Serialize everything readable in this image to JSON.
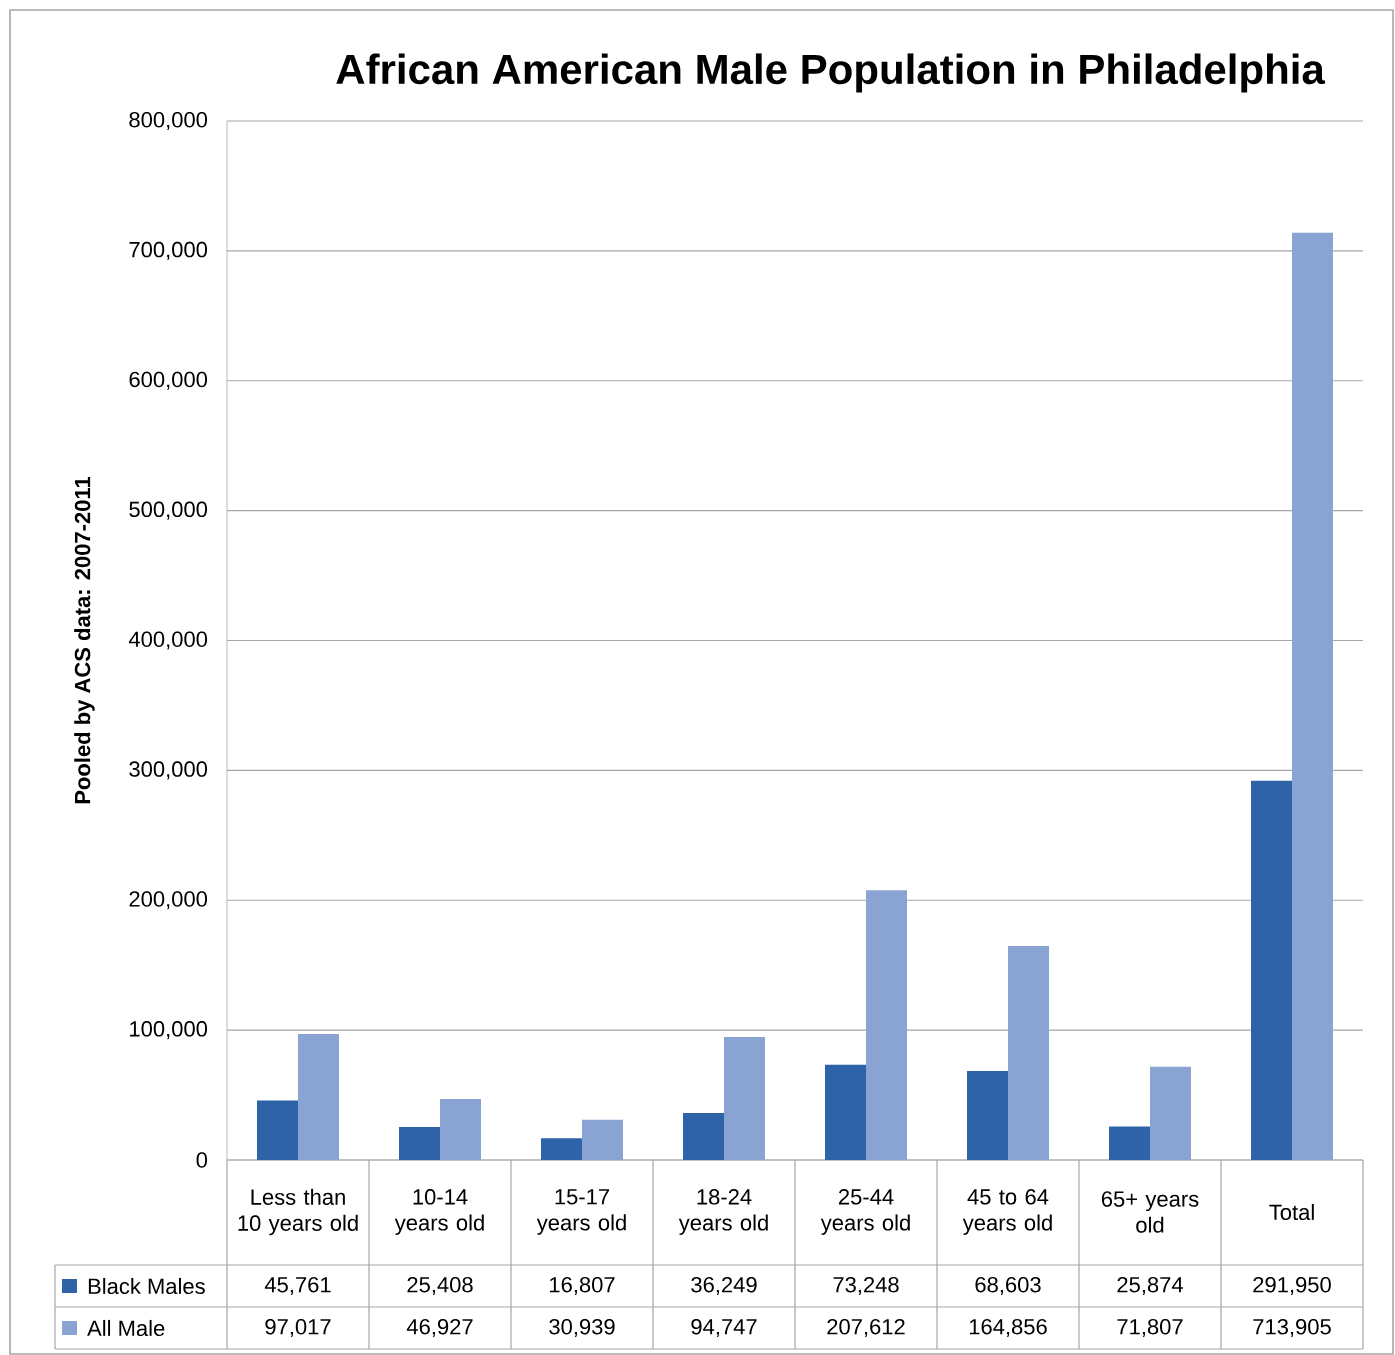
{
  "chart_data": {
    "type": "bar",
    "title": "African American Male Population in Philadelphia",
    "ylabel": "Pooled by ACS data: 2007-2011",
    "categories": [
      "Less than 10 years old",
      "10-14 years old",
      "15-17 years old",
      "18-24 years old",
      "25-44 years old",
      "45 to 64 years old",
      "65+ years old",
      "Total"
    ],
    "series": [
      {
        "name": "Black Males",
        "color": "#2f63a8",
        "values": [
          45761,
          25408,
          16807,
          36249,
          73248,
          68603,
          25874,
          291950
        ],
        "value_labels": [
          "45,761",
          "25,408",
          "16,807",
          "36,249",
          "73,248",
          "68,603",
          "25,874",
          "291,950"
        ]
      },
      {
        "name": "All Male",
        "color": "#89a4d2",
        "values": [
          97017,
          46927,
          30939,
          94747,
          207612,
          164856,
          71807,
          713905
        ],
        "value_labels": [
          "97,017",
          "46,927",
          "30,939",
          "94,747",
          "207,612",
          "164,856",
          "71,807",
          "713,905"
        ]
      }
    ],
    "ylim": [
      0,
      800000
    ],
    "yticks": [
      {
        "value": 0,
        "label": "0"
      },
      {
        "value": 100000,
        "label": "100,000"
      },
      {
        "value": 200000,
        "label": "200,000"
      },
      {
        "value": 300000,
        "label": "300,000"
      },
      {
        "value": 400000,
        "label": "400,000"
      },
      {
        "value": 500000,
        "label": "500,000"
      },
      {
        "value": 600000,
        "label": "600,000"
      },
      {
        "value": 700000,
        "label": "700,000"
      },
      {
        "value": 800000,
        "label": "800,000"
      }
    ],
    "grid": "y",
    "legend": "bottom"
  }
}
